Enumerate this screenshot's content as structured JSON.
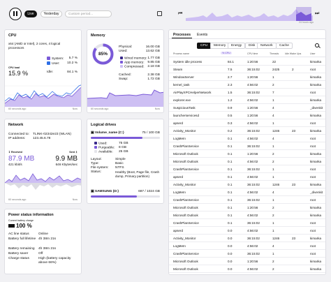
{
  "toolbar": {
    "live_label": "Live",
    "yesterday_label": "Yesterday",
    "period_placeholder": "Custom period...",
    "timeline_label": "24 hours ago"
  },
  "cpu": {
    "title": "CPU",
    "desc": "x64 (AMD or Intel), 2 cores, 4 logical processors",
    "system_label": "System:",
    "system_value": "5.7 %",
    "user_label": "User:",
    "user_value": "10.2 %",
    "load_label": "CPU load",
    "load_value": "15.9 %",
    "idle_label": "Idle:",
    "idle_value": "84.1 %",
    "axis_left": "60 seconds ago",
    "axis_right": "Now",
    "colors": {
      "system": "#7a5ad8",
      "user": "#2e6fe6"
    }
  },
  "memory": {
    "title": "Memory",
    "gauge_value": "85%",
    "gauge_fraction": 0.85,
    "physical_label": "Physical:",
    "physical_value": "16.00 GB",
    "used_label": "Used:",
    "used_value": "13.62 GB",
    "wired_label": "Wired memory:",
    "wired_value": "1.77 GB",
    "app_label": "App memory:",
    "app_value": "9.85 GB",
    "compressed_label": "Compressed:",
    "compressed_value": "2.18 GB",
    "cached_label": "Cached:",
    "cached_value": "2.38 GB",
    "swap_label": "Swap:",
    "swap_value": "1.72 GB",
    "axis_left": "60 seconds ago",
    "axis_right": "Now"
  },
  "network": {
    "title": "Network",
    "connected_label": "Connected to:",
    "connected_value": "TLINK-02342e23 (WLAN)",
    "ip_label": "IP address:",
    "ip_value": "123.45.6.78",
    "received_label": "Received",
    "received_value": "87.9 MB",
    "received_rate": "421 kbit/s",
    "sent_label": "Sent",
    "sent_value": "9.9 MB",
    "sent_rate": "646 Kbytes/sec",
    "axis_left": "60 seconds ago",
    "axis_right": "Now"
  },
  "drives": {
    "title": "Logical drives",
    "drive1_name": "Volume_name (C:)",
    "drive1_usage": "75 / 100 GB",
    "drive1_fraction": 0.75,
    "used_label": "Used:",
    "used_value": "75 GB",
    "purgeable_label": "Purgeable:",
    "purgeable_value": "8 GB",
    "available_label": "Available:",
    "available_value": "25 GB",
    "layout_label": "Layout:",
    "layout_value": "Simple",
    "type_label": "Type:",
    "type_value": "Basic",
    "fs_label": "File system:",
    "fs_value": "NTFS",
    "status_label": "Status:",
    "status_value": "Healthy (Boot, Page file, Crash dump, Primary partition)",
    "drive2_name": "SAMSUNG (D:)",
    "drive2_usage": "687 / 1024 GB",
    "drive2_fraction": 0.67
  },
  "power": {
    "title": "Power status information",
    "charge_label": "Current battery charge",
    "charge_value": "100 %",
    "ac_label": "AC line status",
    "ac_value": "Online",
    "full_label": "Battery full lifetime",
    "full_value": "4h 38m 21s",
    "remaining_label": "Battery remaining",
    "remaining_value": "4h 38m 21s",
    "saver_label": "Battery saver",
    "saver_value": "Off",
    "status_label": "Charge status",
    "status_value": "High (battery capacity above 66%)"
  },
  "processes": {
    "tab_processes": "Processes",
    "tab_events": "Events",
    "filters": [
      "CPU",
      "Memory",
      "Energy",
      "Disk",
      "Network",
      "Cache"
    ],
    "columns": [
      "Process name",
      "% CPU",
      "CPU time",
      "Threads",
      "Idle Wake Ups",
      "User"
    ],
    "sort_badge": "% CPU",
    "rows": [
      [
        "System idle process",
        "84.1",
        "1:20:56",
        "22",
        "",
        "kimarka"
      ],
      [
        "Steam",
        "7.5",
        "36:15:02",
        "2425",
        "2",
        "root"
      ],
      [
        "WindowServer",
        "2.7",
        "1:20:56",
        "1",
        "",
        "kimarka"
      ],
      [
        "kernel_task",
        "2.3",
        "4:56:02",
        "2",
        "",
        "kimarka"
      ],
      [
        "AirPlayXPCHelperNetwork",
        "1.5",
        "36:15:02",
        "7",
        "",
        "root"
      ],
      [
        "explorer.exe",
        "1.2",
        "4:56:02",
        "1",
        "",
        "kimarka"
      ],
      [
        "SuspiciousTask",
        "0.9",
        "1:20:56",
        "4",
        "",
        "_divenkit"
      ],
      [
        "launcherservicesd",
        "0.5",
        "1:20:56",
        "4",
        "",
        "kimarka"
      ],
      [
        "apserd",
        "0.3",
        "4:56:02",
        "1",
        "",
        "root"
      ],
      [
        "Activity_Monitor",
        "0.2",
        "36:15:02",
        "1246",
        "23",
        "kimarka"
      ],
      [
        "LogMeIn",
        "0.1",
        "4:56:02",
        "4",
        "",
        "root"
      ],
      [
        "CrashPlanService",
        "0.1",
        "36:15:02",
        "1",
        "",
        "root"
      ],
      [
        "Microsoft Outlook",
        "0.1",
        "1:20:56",
        "2",
        "",
        "kimarka"
      ],
      [
        "Microsoft Outlook",
        "0.1",
        "4:56:02",
        "2",
        "",
        "kimarka"
      ],
      [
        "CrashPlanService",
        "0.1",
        "36:15:02",
        "1",
        "",
        "root"
      ],
      [
        "apserd",
        "0.1",
        "4:56:02",
        "1",
        "",
        "root"
      ],
      [
        "Activity_Monitor",
        "0.1",
        "36:15:02",
        "1246",
        "23",
        "kimarka"
      ],
      [
        "LogMeIn",
        "0.1",
        "4:56:02",
        "4",
        "",
        "_divenkit"
      ],
      [
        "CrashPlanService",
        "0.1",
        "36:15:02",
        "1",
        "",
        "root"
      ],
      [
        "Microsoft Outlook",
        "0.1",
        "1:20:56",
        "2",
        "",
        "kimarka"
      ],
      [
        "Microsoft Outlook",
        "0.1",
        "4:56:02",
        "2",
        "",
        "kimarka"
      ],
      [
        "CrashPlanService",
        "0.1",
        "36:15:02",
        "1",
        "",
        "root"
      ],
      [
        "apserd",
        "0.0",
        "4:56:02",
        "1",
        "",
        "root"
      ],
      [
        "Activity_Monitor",
        "0.0",
        "36:15:02",
        "1246",
        "23",
        "kimarka"
      ],
      [
        "LogMeIn",
        "0.0",
        "4:56:02",
        "4",
        "",
        "root"
      ],
      [
        "CrashPlanService",
        "0.0",
        "36:15:02",
        "1",
        "",
        "root"
      ],
      [
        "Microsoft Outlook",
        "0.0",
        "1:20:56",
        "2",
        "",
        "kimarka"
      ],
      [
        "Microsoft Outlook",
        "0.0",
        "4:56:02",
        "2",
        "",
        "kimarka"
      ]
    ]
  },
  "icons": [
    "pause-icon",
    "skip-back-icon",
    "skip-forward-icon",
    "search-icon",
    "drive-icon",
    "battery-icon",
    "download-icon",
    "upload-icon"
  ]
}
